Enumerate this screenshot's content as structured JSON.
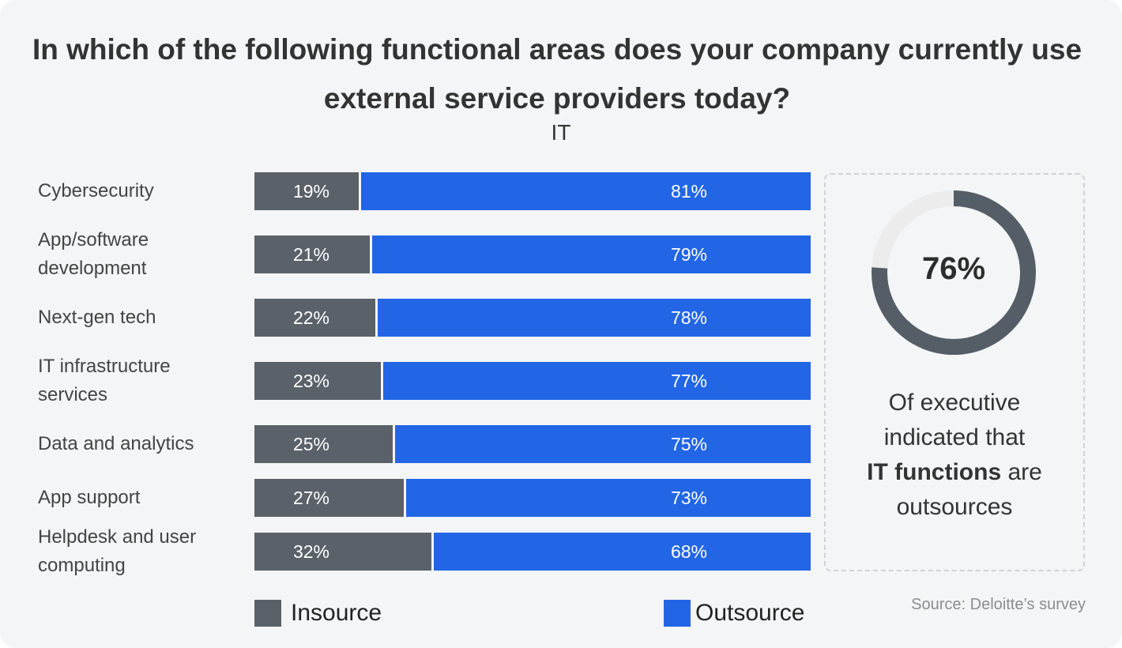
{
  "chart_data": {
    "type": "bar",
    "stacked": true,
    "orientation": "horizontal",
    "title": "In which of the following functional areas does your company currently use external service providers today?",
    "subtitle": "IT",
    "categories": [
      "Cybersecurity",
      "App/software development",
      "Next-gen tech",
      "IT infrastructure services",
      "Data and analytics",
      "App support",
      "Helpdesk and user computing"
    ],
    "series": [
      {
        "name": "Insource",
        "color": "#5a6169",
        "values": [
          19,
          21,
          22,
          23,
          25,
          27,
          32
        ],
        "labels": [
          "19%",
          "21%",
          "22%",
          "23%",
          "25%",
          "27%",
          "32%"
        ]
      },
      {
        "name": "Outsource",
        "color": "#2266e6",
        "values": [
          81,
          79,
          78,
          77,
          75,
          73,
          68
        ],
        "labels": [
          "81%",
          "79%",
          "78%",
          "77%",
          "75%",
          "73%",
          "68%"
        ]
      }
    ],
    "xlim": [
      0,
      100
    ],
    "legend": "bottom",
    "grid": false
  },
  "callout": {
    "value": 76,
    "value_label": "76%",
    "ring_color": "#555d66",
    "track_color": "#ececec",
    "line1": "Of executive",
    "line2": "indicated that",
    "bold": "IT functions",
    "line3_rest": " are",
    "line4": "outsources"
  },
  "source": "Source: Deloitte’s survey"
}
